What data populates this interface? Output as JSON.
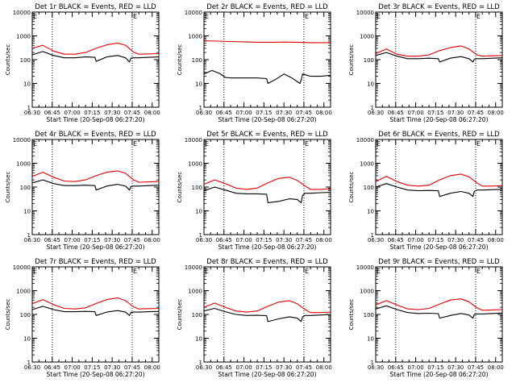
{
  "figure": {
    "colors": {
      "events": "#000000",
      "lld": "#e00000",
      "axes": "#000000"
    },
    "xtick_labels": [
      "06:30",
      "06:45",
      "07:00",
      "07:15",
      "07:30",
      "07:45",
      "08:00"
    ],
    "ytick_labels": [
      "1",
      "10",
      "100",
      "1000",
      "10000"
    ],
    "ylabel": "Counts/sec",
    "marker_label": "E"
  },
  "chart_data": [
    {
      "type": "line",
      "title": "Det 1r BLACK = Events, RED = LLD",
      "xlabel": "Start Time (20-Sep-08 06:27:20)",
      "ylabel": "Counts/sec",
      "y_scale": "log",
      "ylim": [
        1,
        10000
      ],
      "x_unit": "minutes after 06:30",
      "xlim": [
        0,
        95
      ],
      "dotted_vlines": [
        15,
        75
      ],
      "series": [
        {
          "name": "LLD",
          "color": "red",
          "x": [
            0,
            8,
            16,
            24,
            32,
            40,
            48,
            56,
            64,
            70,
            76,
            80,
            88,
            95
          ],
          "y": [
            300,
            400,
            230,
            170,
            170,
            200,
            300,
            420,
            500,
            400,
            210,
            170,
            175,
            180
          ]
        },
        {
          "name": "Events",
          "color": "black",
          "x": [
            0,
            8,
            16,
            24,
            32,
            40,
            47,
            48,
            56,
            64,
            70,
            73,
            74,
            76,
            80,
            88,
            95
          ],
          "y": [
            160,
            220,
            150,
            120,
            120,
            130,
            125,
            85,
            130,
            150,
            120,
            80,
            115,
            120,
            120,
            125,
            130
          ]
        }
      ]
    },
    {
      "type": "line",
      "title": "Det 2r BLACK = Events, RED = LLD",
      "xlabel": "Start Time (20-Sep-08 06:27:20)",
      "ylabel": "Counts/sec",
      "y_scale": "log",
      "ylim": [
        1,
        10000
      ],
      "x_unit": "minutes after 06:30",
      "xlim": [
        0,
        95
      ],
      "dotted_vlines": [
        15,
        75
      ],
      "series": [
        {
          "name": "LLD",
          "color": "red",
          "x": [
            0,
            10,
            20,
            30,
            40,
            50,
            60,
            70,
            80,
            95
          ],
          "y": [
            620,
            600,
            580,
            560,
            540,
            540,
            550,
            540,
            520,
            520
          ]
        },
        {
          "name": "Events",
          "color": "black",
          "x": [
            0,
            6,
            12,
            16,
            20,
            30,
            40,
            47,
            48,
            54,
            60,
            66,
            72,
            73,
            74,
            80,
            88,
            95
          ],
          "y": [
            25,
            35,
            26,
            18,
            17,
            17,
            17,
            16,
            10,
            15,
            25,
            17,
            10,
            14,
            25,
            20,
            20,
            22
          ]
        }
      ]
    },
    {
      "type": "line",
      "title": "Det 3r BLACK = Events, RED = LLD",
      "xlabel": "Start Time (20-Sep-08 06:27:20)",
      "ylabel": "Counts/sec",
      "y_scale": "log",
      "ylim": [
        1,
        10000
      ],
      "x_unit": "minutes after 06:30",
      "xlim": [
        0,
        95
      ],
      "dotted_vlines": [
        15,
        75
      ],
      "series": [
        {
          "name": "LLD",
          "color": "red",
          "x": [
            0,
            8,
            16,
            24,
            32,
            40,
            48,
            56,
            64,
            70,
            76,
            80,
            88,
            95
          ],
          "y": [
            180,
            280,
            170,
            140,
            140,
            160,
            240,
            320,
            380,
            280,
            160,
            140,
            145,
            150
          ]
        },
        {
          "name": "Events",
          "color": "black",
          "x": [
            0,
            8,
            16,
            24,
            32,
            40,
            47,
            48,
            56,
            64,
            70,
            73,
            74,
            76,
            80,
            88,
            95
          ],
          "y": [
            150,
            200,
            140,
            110,
            110,
            115,
            110,
            80,
            115,
            135,
            110,
            80,
            105,
            110,
            110,
            115,
            120
          ]
        }
      ]
    },
    {
      "type": "line",
      "title": "Det 4r BLACK = Events, RED = LLD",
      "xlabel": "Start Time (20-Sep-08 06:27:20)",
      "ylabel": "Counts/sec",
      "y_scale": "log",
      "ylim": [
        1,
        10000
      ],
      "x_unit": "minutes after 06:30",
      "xlim": [
        0,
        95
      ],
      "dotted_vlines": [
        15,
        75
      ],
      "series": [
        {
          "name": "LLD",
          "color": "red",
          "x": [
            0,
            8,
            16,
            24,
            32,
            40,
            48,
            56,
            64,
            70,
            76,
            80,
            88,
            95
          ],
          "y": [
            280,
            420,
            260,
            180,
            170,
            200,
            300,
            420,
            480,
            380,
            200,
            160,
            165,
            170
          ]
        },
        {
          "name": "Events",
          "color": "black",
          "x": [
            0,
            8,
            16,
            24,
            32,
            40,
            47,
            48,
            56,
            64,
            70,
            73,
            74,
            76,
            80,
            88,
            95
          ],
          "y": [
            150,
            200,
            140,
            115,
            115,
            120,
            115,
            75,
            110,
            130,
            110,
            75,
            105,
            110,
            110,
            115,
            120
          ]
        }
      ]
    },
    {
      "type": "line",
      "title": "Det 5r BLACK = Events, RED = LLD",
      "xlabel": "Start Time (20-Sep-08 06:27:20)",
      "ylabel": "Counts/sec",
      "y_scale": "log",
      "ylim": [
        1,
        10000
      ],
      "x_unit": "minutes after 06:30",
      "xlim": [
        0,
        95
      ],
      "dotted_vlines": [
        15,
        75
      ],
      "series": [
        {
          "name": "LLD",
          "color": "red",
          "x": [
            0,
            8,
            16,
            24,
            32,
            40,
            48,
            56,
            64,
            70,
            76,
            80,
            88,
            95
          ],
          "y": [
            130,
            200,
            140,
            90,
            80,
            90,
            150,
            230,
            260,
            190,
            110,
            80,
            80,
            85
          ]
        },
        {
          "name": "Events",
          "color": "black",
          "x": [
            0,
            8,
            16,
            24,
            32,
            40,
            47,
            48,
            56,
            64,
            70,
            73,
            74,
            76,
            80,
            88,
            95
          ],
          "y": [
            70,
            100,
            75,
            55,
            52,
            52,
            50,
            22,
            25,
            32,
            30,
            22,
            45,
            55,
            55,
            58,
            60
          ]
        }
      ]
    },
    {
      "type": "line",
      "title": "Det 6r BLACK = Events, RED = LLD",
      "xlabel": "Start Time (20-Sep-08 06:27:20)",
      "ylabel": "Counts/sec",
      "y_scale": "log",
      "ylim": [
        1,
        10000
      ],
      "x_unit": "minutes after 06:30",
      "xlim": [
        0,
        95
      ],
      "dotted_vlines": [
        15,
        75
      ],
      "series": [
        {
          "name": "LLD",
          "color": "red",
          "x": [
            0,
            8,
            16,
            24,
            32,
            40,
            48,
            56,
            64,
            70,
            76,
            80,
            88,
            95
          ],
          "y": [
            170,
            280,
            170,
            120,
            110,
            120,
            200,
            300,
            350,
            270,
            150,
            110,
            110,
            115
          ]
        },
        {
          "name": "Events",
          "color": "black",
          "x": [
            0,
            8,
            16,
            24,
            32,
            40,
            47,
            48,
            56,
            64,
            70,
            73,
            74,
            76,
            80,
            88,
            95
          ],
          "y": [
            100,
            140,
            100,
            75,
            70,
            72,
            70,
            40,
            55,
            65,
            55,
            40,
            65,
            75,
            75,
            78,
            80
          ]
        }
      ]
    },
    {
      "type": "line",
      "title": "Det 7r BLACK = Events, RED = LLD",
      "xlabel": "Start Time (20-Sep-08 06:27:20)",
      "ylabel": "Counts/sec",
      "y_scale": "log",
      "ylim": [
        1,
        10000
      ],
      "x_unit": "minutes after 06:30",
      "xlim": [
        0,
        95
      ],
      "dotted_vlines": [
        15,
        75
      ],
      "series": [
        {
          "name": "LLD",
          "color": "red",
          "x": [
            0,
            8,
            16,
            24,
            32,
            40,
            48,
            56,
            64,
            70,
            76,
            80,
            88,
            95
          ],
          "y": [
            280,
            420,
            260,
            180,
            170,
            190,
            290,
            420,
            500,
            380,
            210,
            170,
            175,
            180
          ]
        },
        {
          "name": "Events",
          "color": "black",
          "x": [
            0,
            8,
            16,
            24,
            32,
            40,
            47,
            48,
            56,
            64,
            70,
            73,
            74,
            76,
            80,
            88,
            95
          ],
          "y": [
            160,
            220,
            160,
            130,
            130,
            135,
            130,
            90,
            125,
            145,
            125,
            90,
            120,
            125,
            125,
            130,
            135
          ]
        }
      ]
    },
    {
      "type": "line",
      "title": "Det 8r BLACK = Events, RED = LLD",
      "xlabel": "Start Time (20-Sep-08 06:27:20)",
      "ylabel": "Counts/sec",
      "y_scale": "log",
      "ylim": [
        1,
        10000
      ],
      "x_unit": "minutes after 06:30",
      "xlim": [
        0,
        95
      ],
      "dotted_vlines": [
        15,
        75
      ],
      "series": [
        {
          "name": "LLD",
          "color": "red",
          "x": [
            0,
            8,
            16,
            24,
            32,
            40,
            48,
            56,
            64,
            70,
            76,
            80,
            88,
            95
          ],
          "y": [
            200,
            300,
            200,
            140,
            125,
            140,
            220,
            330,
            380,
            280,
            160,
            120,
            120,
            125
          ]
        },
        {
          "name": "Events",
          "color": "black",
          "x": [
            0,
            8,
            16,
            24,
            32,
            40,
            47,
            48,
            56,
            64,
            70,
            73,
            74,
            76,
            80,
            88,
            95
          ],
          "y": [
            140,
            180,
            130,
            100,
            90,
            92,
            88,
            50,
            65,
            80,
            70,
            50,
            80,
            90,
            90,
            95,
            100
          ]
        }
      ]
    },
    {
      "type": "line",
      "title": "Det 9r BLACK = Events, RED = LLD",
      "xlabel": "Start Time (20-Sep-08 06:27:20)",
      "ylabel": "Counts/sec",
      "y_scale": "log",
      "ylim": [
        1,
        10000
      ],
      "x_unit": "minutes after 06:30",
      "xlim": [
        0,
        95
      ],
      "dotted_vlines": [
        15,
        75
      ],
      "series": [
        {
          "name": "LLD",
          "color": "red",
          "x": [
            0,
            8,
            16,
            24,
            32,
            40,
            48,
            56,
            64,
            70,
            76,
            80,
            88,
            95
          ],
          "y": [
            250,
            380,
            250,
            170,
            160,
            180,
            270,
            400,
            450,
            340,
            190,
            150,
            155,
            160
          ]
        },
        {
          "name": "Events",
          "color": "black",
          "x": [
            0,
            8,
            16,
            24,
            32,
            40,
            47,
            48,
            56,
            64,
            70,
            73,
            74,
            76,
            80,
            88,
            95
          ],
          "y": [
            170,
            230,
            160,
            120,
            110,
            112,
            108,
            70,
            90,
            110,
            95,
            70,
            100,
            105,
            105,
            110,
            115
          ]
        }
      ]
    }
  ]
}
